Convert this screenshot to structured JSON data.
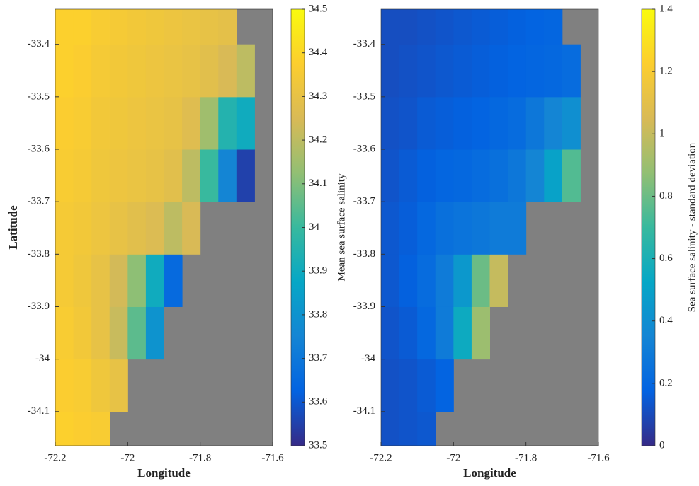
{
  "chart_data": [
    {
      "type": "heatmap",
      "xlabel": "Longitude",
      "ylabel": "Latitude",
      "colorbar_label": "Mean sea surface salinity",
      "colormap": "parula",
      "nan_color": "#808080",
      "xlim": [
        -72.2,
        -71.6
      ],
      "ylim": [
        -34.165,
        -33.333
      ],
      "xticks": [
        -72.2,
        -72,
        -71.8,
        -71.6
      ],
      "yticks": [
        -34.1,
        -34,
        -33.9,
        -33.8,
        -33.7,
        -33.6,
        -33.5,
        -33.4
      ],
      "clim": [
        33.5,
        34.5
      ],
      "cticks": [
        33.5,
        33.6,
        33.7,
        33.8,
        33.9,
        34,
        34.1,
        34.2,
        34.3,
        34.4,
        34.5
      ],
      "x": [
        -72.175,
        -72.125,
        -72.075,
        -72.025,
        -71.975,
        -71.925,
        -71.875,
        -71.825,
        -71.775,
        -71.725,
        -71.675,
        -71.625
      ],
      "y": [
        -34.15,
        -34.05,
        -33.95,
        -33.85,
        -33.75,
        -33.65,
        -33.55,
        -33.45,
        -33.35
      ],
      "z": [
        [
          34.38,
          34.37,
          34.36,
          null,
          null,
          null,
          null,
          null,
          null,
          null,
          null,
          null
        ],
        [
          34.37,
          34.36,
          34.33,
          34.3,
          null,
          null,
          null,
          null,
          null,
          null,
          null,
          null
        ],
        [
          34.36,
          34.34,
          34.3,
          34.22,
          34.05,
          33.8,
          null,
          null,
          null,
          null,
          null,
          null
        ],
        [
          34.35,
          34.33,
          34.3,
          34.24,
          34.12,
          33.9,
          33.65,
          null,
          null,
          null,
          null,
          null
        ],
        [
          34.35,
          34.34,
          34.32,
          34.3,
          34.28,
          34.26,
          34.2,
          34.25,
          null,
          null,
          null,
          null
        ],
        [
          34.36,
          34.35,
          34.33,
          34.32,
          34.31,
          34.3,
          34.28,
          34.2,
          34.0,
          33.75,
          33.55,
          null
        ],
        [
          34.37,
          34.36,
          34.34,
          34.33,
          34.32,
          34.31,
          34.3,
          34.27,
          34.15,
          33.95,
          33.9,
          null
        ],
        [
          34.38,
          34.37,
          34.35,
          34.34,
          34.33,
          34.32,
          34.31,
          34.3,
          34.28,
          34.25,
          34.2,
          null
        ],
        [
          34.38,
          34.38,
          34.36,
          34.35,
          34.34,
          34.33,
          34.32,
          34.31,
          34.3,
          34.29,
          null,
          null
        ]
      ]
    },
    {
      "type": "heatmap",
      "xlabel": "Longitude",
      "colorbar_label": "Sea surface salinity - standard deviation",
      "colormap": "parula",
      "nan_color": "#808080",
      "xlim": [
        -72.2,
        -71.6
      ],
      "ylim": [
        -34.165,
        -33.333
      ],
      "xticks": [
        -72.2,
        -72,
        -71.8,
        -71.6
      ],
      "yticks": [
        -34.1,
        -34,
        -33.9,
        -33.8,
        -33.7,
        -33.6,
        -33.5,
        -33.4
      ],
      "clim": [
        0,
        1.4
      ],
      "cticks": [
        0,
        0.2,
        0.4,
        0.6,
        0.8,
        1,
        1.2,
        1.4
      ],
      "x": [
        -72.175,
        -72.125,
        -72.075,
        -72.025,
        -71.975,
        -71.925,
        -71.875,
        -71.825,
        -71.775,
        -71.725,
        -71.675,
        -71.625
      ],
      "y": [
        -34.15,
        -34.05,
        -33.95,
        -33.85,
        -33.75,
        -33.65,
        -33.55,
        -33.45,
        -33.35
      ],
      "z": [
        [
          0.12,
          0.13,
          0.14,
          null,
          null,
          null,
          null,
          null,
          null,
          null,
          null,
          null
        ],
        [
          0.12,
          0.13,
          0.15,
          0.18,
          null,
          null,
          null,
          null,
          null,
          null,
          null,
          null
        ],
        [
          0.13,
          0.15,
          0.2,
          0.3,
          0.55,
          0.9,
          null,
          null,
          null,
          null,
          null,
          null
        ],
        [
          0.14,
          0.17,
          0.22,
          0.3,
          0.45,
          0.8,
          1.0,
          null,
          null,
          null,
          null,
          null
        ],
        [
          0.14,
          0.16,
          0.2,
          0.24,
          0.26,
          0.28,
          0.3,
          0.3,
          null,
          null,
          null,
          null
        ],
        [
          0.13,
          0.15,
          0.17,
          0.19,
          0.2,
          0.22,
          0.24,
          0.28,
          0.35,
          0.5,
          0.75,
          null
        ],
        [
          0.12,
          0.13,
          0.15,
          0.16,
          0.17,
          0.18,
          0.2,
          0.22,
          0.28,
          0.35,
          0.4,
          null
        ],
        [
          0.11,
          0.12,
          0.13,
          0.14,
          0.15,
          0.16,
          0.17,
          0.18,
          0.19,
          0.2,
          0.22,
          null
        ],
        [
          0.11,
          0.11,
          0.12,
          0.13,
          0.14,
          0.15,
          0.16,
          0.17,
          0.18,
          0.19,
          null,
          null
        ]
      ]
    }
  ]
}
